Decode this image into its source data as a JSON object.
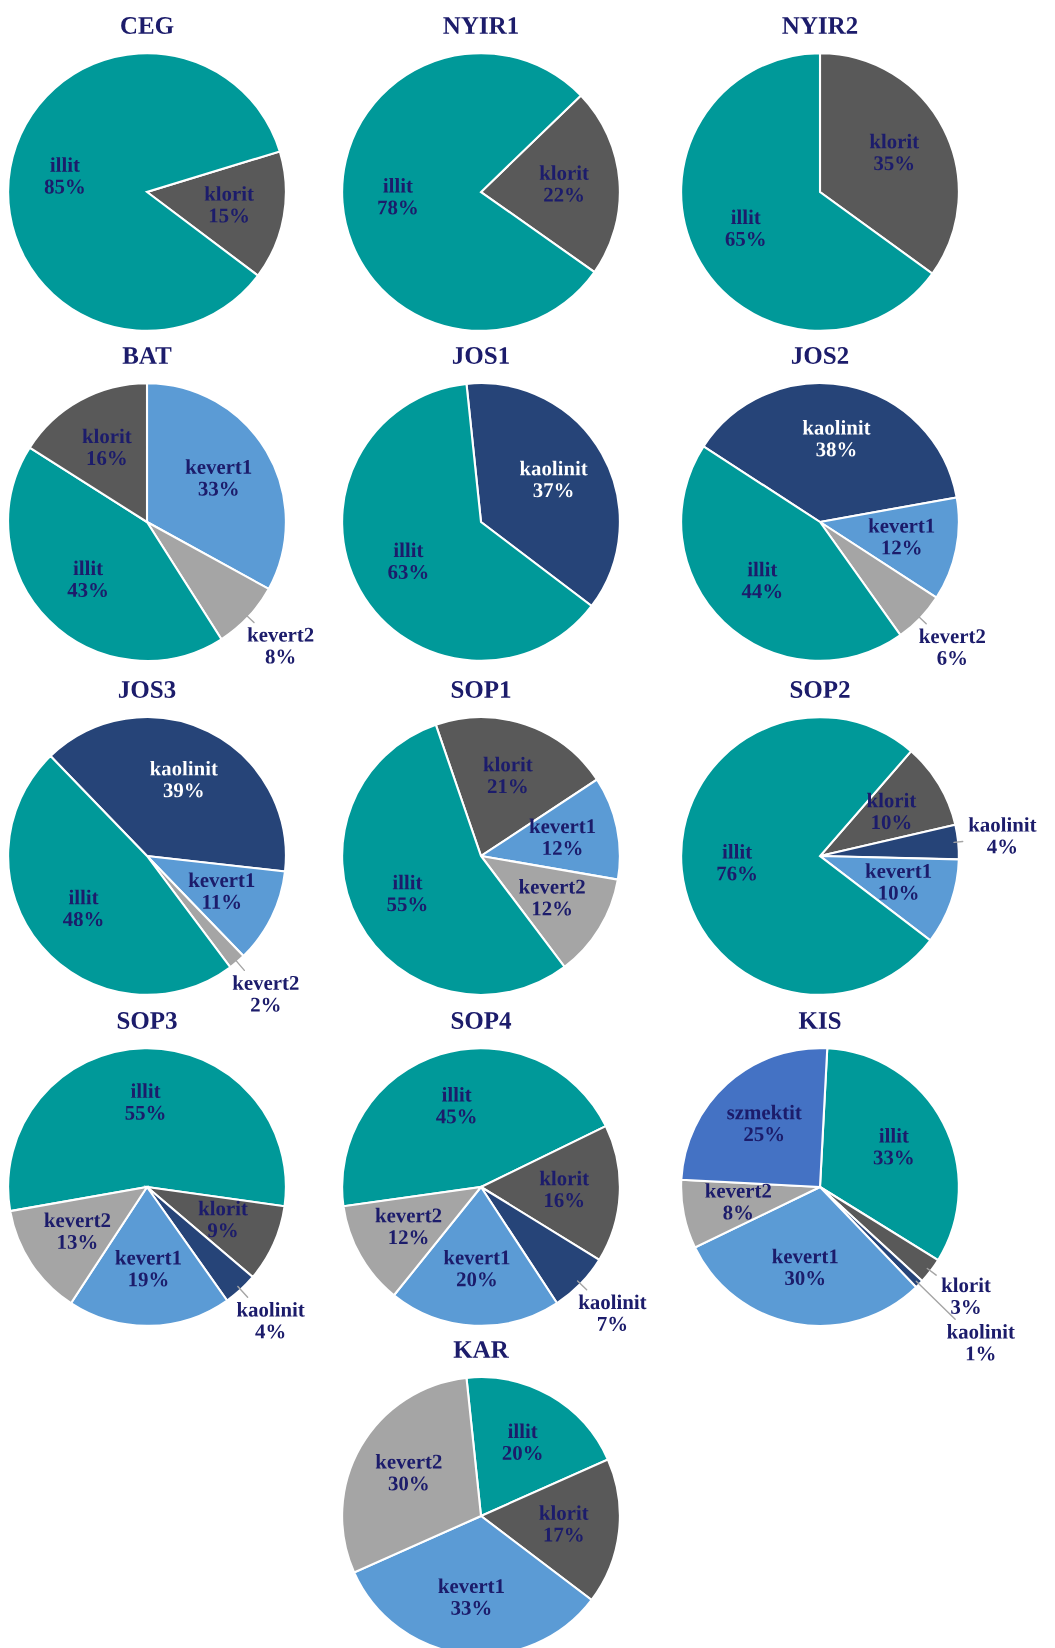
{
  "chart_data": [
    {
      "type": "pie",
      "title": "CEG",
      "categories": [
        "klorit",
        "illit"
      ],
      "values": [
        15,
        85
      ],
      "colors": [
        "#595959",
        "#009999"
      ],
      "value_labels": [
        "15%",
        "85%"
      ]
    },
    {
      "type": "pie",
      "title": "NYIR1",
      "categories": [
        "klorit",
        "illit"
      ],
      "values": [
        22,
        78
      ],
      "colors": [
        "#595959",
        "#009999"
      ],
      "value_labels": [
        "22%",
        "78%"
      ]
    },
    {
      "type": "pie",
      "title": "NYIR2",
      "categories": [
        "klorit",
        "illit"
      ],
      "values": [
        35,
        65
      ],
      "colors": [
        "#595959",
        "#009999"
      ],
      "value_labels": [
        "35%",
        "65%"
      ]
    },
    {
      "type": "pie",
      "title": "BAT",
      "categories": [
        "kevert1",
        "kevert2",
        "illit",
        "klorit"
      ],
      "values": [
        33,
        8,
        43,
        16
      ],
      "colors": [
        "#5b9bd5",
        "#a5a5a5",
        "#009999",
        "#595959"
      ],
      "value_labels": [
        "33%",
        "8%",
        "43%",
        "16%"
      ]
    },
    {
      "type": "pie",
      "title": "JOS1",
      "categories": [
        "kaolinit",
        "illit"
      ],
      "values": [
        37,
        63
      ],
      "colors": [
        "#264478",
        "#009999"
      ],
      "value_labels": [
        "37%",
        "63%"
      ]
    },
    {
      "type": "pie",
      "title": "JOS2",
      "categories": [
        "kaolinit",
        "kevert1",
        "kevert2",
        "illit"
      ],
      "values": [
        38,
        12,
        6,
        44
      ],
      "colors": [
        "#264478",
        "#5b9bd5",
        "#a5a5a5",
        "#009999"
      ],
      "value_labels": [
        "38%",
        "12%",
        "6%",
        "44%"
      ]
    },
    {
      "type": "pie",
      "title": "JOS3",
      "categories": [
        "kaolinit",
        "kevert1",
        "kevert2",
        "illit"
      ],
      "values": [
        39,
        11,
        2,
        48
      ],
      "colors": [
        "#264478",
        "#5b9bd5",
        "#a5a5a5",
        "#009999"
      ],
      "value_labels": [
        "39%",
        "11%",
        "2%",
        "48%"
      ]
    },
    {
      "type": "pie",
      "title": "SOP1",
      "categories": [
        "klorit",
        "kevert1",
        "kevert2",
        "illit"
      ],
      "values": [
        21,
        12,
        12,
        55
      ],
      "colors": [
        "#595959",
        "#5b9bd5",
        "#a5a5a5",
        "#009999"
      ],
      "value_labels": [
        "21%",
        "12%",
        "12%",
        "55%"
      ]
    },
    {
      "type": "pie",
      "title": "SOP2",
      "categories": [
        "klorit",
        "kaolinit",
        "kevert1",
        "illit"
      ],
      "values": [
        10,
        4,
        10,
        76
      ],
      "colors": [
        "#595959",
        "#264478",
        "#5b9bd5",
        "#009999"
      ],
      "value_labels": [
        "10%",
        "4%",
        "10%",
        "76%"
      ]
    },
    {
      "type": "pie",
      "title": "SOP3",
      "categories": [
        "illit",
        "klorit",
        "kaolinit",
        "kevert1",
        "kevert2"
      ],
      "values": [
        55,
        9,
        4,
        19,
        13
      ],
      "colors": [
        "#009999",
        "#595959",
        "#264478",
        "#5b9bd5",
        "#a5a5a5"
      ],
      "value_labels": [
        "55%",
        "9%",
        "4%",
        "19%",
        "13%"
      ]
    },
    {
      "type": "pie",
      "title": "SOP4",
      "categories": [
        "illit",
        "klorit",
        "kaolinit",
        "kevert1",
        "kevert2"
      ],
      "values": [
        45,
        16,
        7,
        20,
        12
      ],
      "colors": [
        "#009999",
        "#595959",
        "#264478",
        "#5b9bd5",
        "#a5a5a5"
      ],
      "value_labels": [
        "45%",
        "16%",
        "7%",
        "20%",
        "12%"
      ]
    },
    {
      "type": "pie",
      "title": "KIS",
      "categories": [
        "illit",
        "klorit",
        "kaolinit",
        "kevert1",
        "kevert2",
        "szmektit"
      ],
      "values": [
        33,
        3,
        1,
        30,
        8,
        25
      ],
      "colors": [
        "#009999",
        "#595959",
        "#264478",
        "#5b9bd5",
        "#a5a5a5",
        "#4472c4"
      ],
      "value_labels": [
        "33%",
        "3%",
        "1%",
        "30%",
        "8%",
        "25%"
      ]
    },
    {
      "type": "pie",
      "title": "KAR",
      "categories": [
        "illit",
        "klorit",
        "kevert1",
        "kevert2"
      ],
      "values": [
        20,
        17,
        33,
        30
      ],
      "colors": [
        "#009999",
        "#595959",
        "#5b9bd5",
        "#a5a5a5"
      ],
      "value_labels": [
        "20%",
        "17%",
        "33%",
        "30%"
      ]
    }
  ]
}
